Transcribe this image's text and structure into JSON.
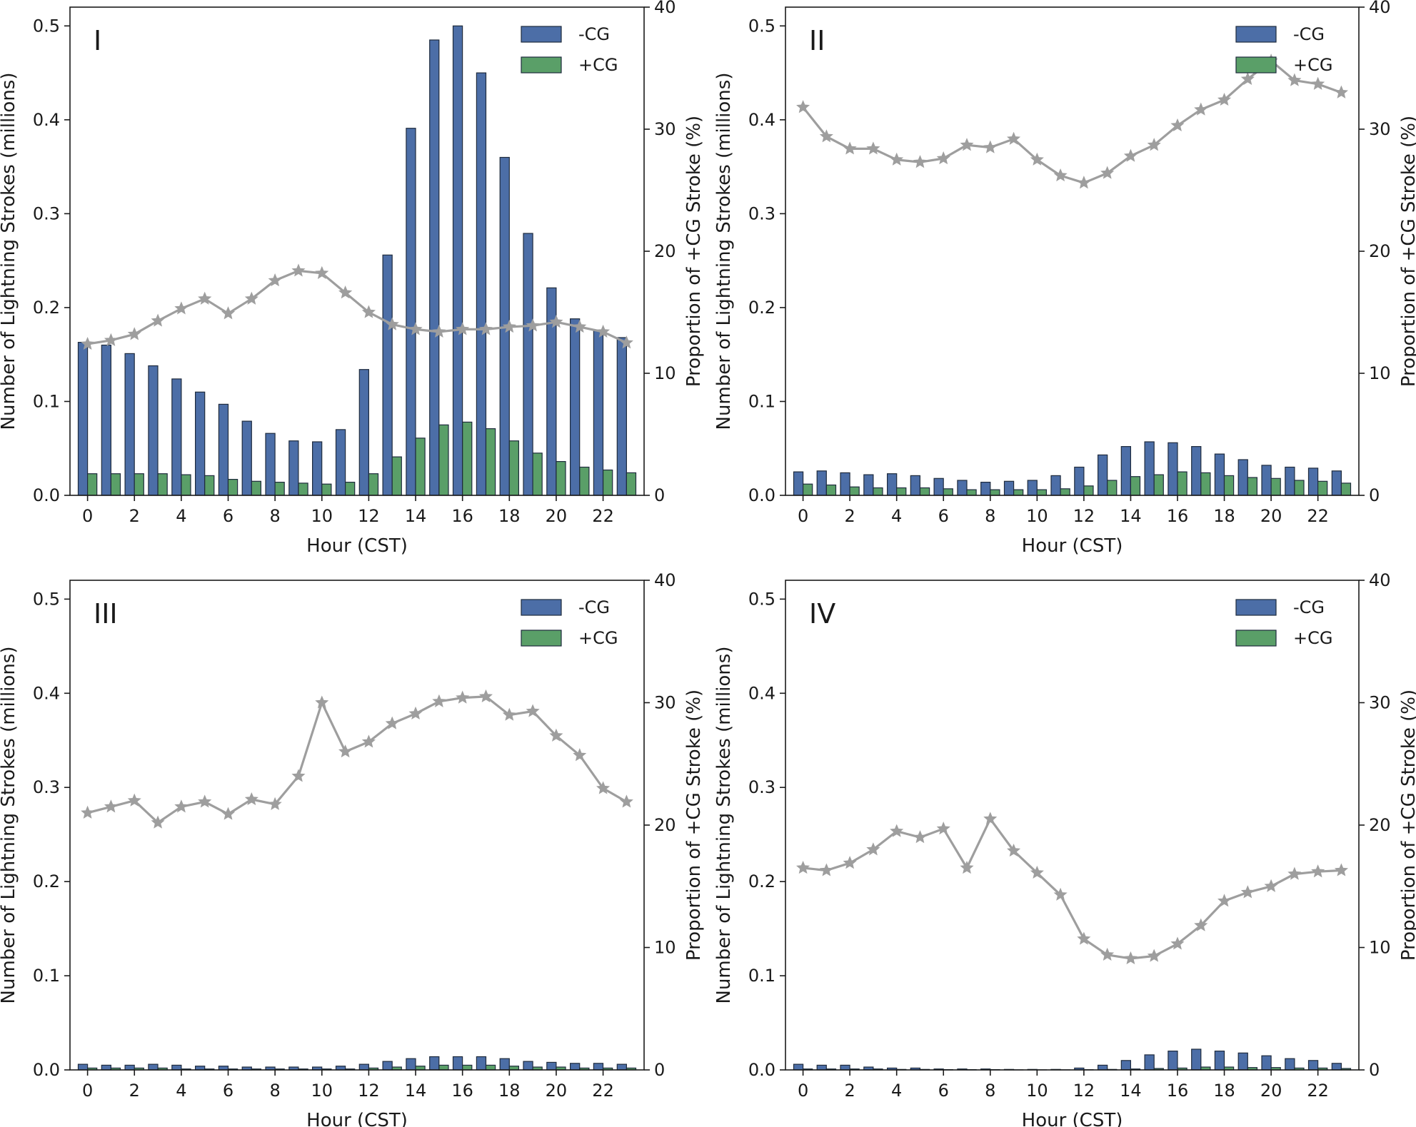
{
  "figure": {
    "legend": {
      "neg_label": "-CG",
      "pos_label": "+CG"
    },
    "colors": {
      "neg": "#4c6ea7",
      "pos": "#5a9f68",
      "line": "#9e9e9e",
      "axis": "#1a1a1a",
      "edge": "#1f2b3d"
    }
  },
  "chart_data": [
    {
      "type": "bar",
      "panel_label": "I",
      "xlabel": "Hour (CST)",
      "ylabel": "Number of Lightning Strokes (millions)",
      "ylabel_right": "Proportion of +CG Stroke (%)",
      "xticks": [
        "0",
        "2",
        "4",
        "6",
        "8",
        "10",
        "12",
        "14",
        "16",
        "18",
        "20",
        "22"
      ],
      "yticks": [
        "0.0",
        "0.1",
        "0.2",
        "0.3",
        "0.4",
        "0.5"
      ],
      "yticks_right": [
        "0",
        "10",
        "20",
        "30",
        "40"
      ],
      "ylim": [
        0,
        0.52
      ],
      "ylim_right": [
        0,
        40
      ],
      "legend": "top-right",
      "categories": [
        0,
        1,
        2,
        3,
        4,
        5,
        6,
        7,
        8,
        9,
        10,
        11,
        12,
        13,
        14,
        15,
        16,
        17,
        18,
        19,
        20,
        21,
        22,
        23
      ],
      "series": [
        {
          "name": "-CG",
          "values": [
            0.163,
            0.16,
            0.151,
            0.138,
            0.124,
            0.11,
            0.097,
            0.079,
            0.066,
            0.058,
            0.057,
            0.07,
            0.134,
            0.256,
            0.391,
            0.485,
            0.5,
            0.45,
            0.36,
            0.279,
            0.221,
            0.188,
            0.176,
            0.168
          ]
        },
        {
          "name": "+CG",
          "values": [
            0.023,
            0.023,
            0.023,
            0.023,
            0.022,
            0.021,
            0.017,
            0.015,
            0.014,
            0.013,
            0.012,
            0.014,
            0.023,
            0.041,
            0.061,
            0.075,
            0.078,
            0.071,
            0.058,
            0.045,
            0.036,
            0.03,
            0.027,
            0.024
          ]
        },
        {
          "axis": "right",
          "values": [
            12.4,
            12.7,
            13.2,
            14.3,
            15.3,
            16.1,
            14.9,
            16.1,
            17.6,
            18.4,
            18.2,
            16.6,
            15.0,
            14.0,
            13.6,
            13.4,
            13.6,
            13.6,
            13.8,
            13.9,
            14.2,
            13.8,
            13.4,
            12.5
          ]
        }
      ]
    },
    {
      "type": "bar",
      "panel_label": "II",
      "xlabel": "Hour (CST)",
      "ylabel": "Number of Lightning Strokes (millions)",
      "ylabel_right": "Proportion of +CG Stroke (%)",
      "xticks": [
        "0",
        "2",
        "4",
        "6",
        "8",
        "10",
        "12",
        "14",
        "16",
        "18",
        "20",
        "22"
      ],
      "yticks": [
        "0.0",
        "0.1",
        "0.2",
        "0.3",
        "0.4",
        "0.5"
      ],
      "yticks_right": [
        "0",
        "10",
        "20",
        "30",
        "40"
      ],
      "ylim": [
        0,
        0.52
      ],
      "ylim_right": [
        0,
        40
      ],
      "legend": "top-right",
      "categories": [
        0,
        1,
        2,
        3,
        4,
        5,
        6,
        7,
        8,
        9,
        10,
        11,
        12,
        13,
        14,
        15,
        16,
        17,
        18,
        19,
        20,
        21,
        22,
        23
      ],
      "series": [
        {
          "name": "-CG",
          "values": [
            0.025,
            0.026,
            0.024,
            0.022,
            0.023,
            0.021,
            0.018,
            0.016,
            0.014,
            0.015,
            0.016,
            0.021,
            0.03,
            0.043,
            0.052,
            0.057,
            0.056,
            0.052,
            0.044,
            0.038,
            0.032,
            0.03,
            0.029,
            0.026
          ]
        },
        {
          "name": "+CG",
          "values": [
            0.012,
            0.011,
            0.009,
            0.008,
            0.008,
            0.008,
            0.007,
            0.006,
            0.006,
            0.006,
            0.006,
            0.007,
            0.01,
            0.016,
            0.02,
            0.022,
            0.025,
            0.024,
            0.021,
            0.019,
            0.018,
            0.016,
            0.015,
            0.013
          ]
        },
        {
          "axis": "right",
          "values": [
            31.8,
            29.4,
            28.4,
            28.4,
            27.5,
            27.3,
            27.6,
            28.7,
            28.5,
            29.2,
            27.5,
            26.2,
            25.6,
            26.4,
            27.8,
            28.7,
            30.3,
            31.6,
            32.4,
            34.1,
            35.6,
            34.0,
            33.7,
            33.0
          ]
        }
      ]
    },
    {
      "type": "bar",
      "panel_label": "III",
      "xlabel": "Hour (CST)",
      "ylabel": "Number of Lightning Strokes (millions)",
      "ylabel_right": "Proportion of +CG Stroke (%)",
      "xticks": [
        "0",
        "2",
        "4",
        "6",
        "8",
        "10",
        "12",
        "14",
        "16",
        "18",
        "20",
        "22"
      ],
      "yticks": [
        "0.0",
        "0.1",
        "0.2",
        "0.3",
        "0.4",
        "0.5"
      ],
      "yticks_right": [
        "0",
        "10",
        "20",
        "30",
        "40"
      ],
      "ylim": [
        0,
        0.52
      ],
      "ylim_right": [
        0,
        40
      ],
      "legend": "top-right",
      "categories": [
        0,
        1,
        2,
        3,
        4,
        5,
        6,
        7,
        8,
        9,
        10,
        11,
        12,
        13,
        14,
        15,
        16,
        17,
        18,
        19,
        20,
        21,
        22,
        23
      ],
      "series": [
        {
          "name": "-CG",
          "values": [
            0.006,
            0.005,
            0.005,
            0.006,
            0.005,
            0.004,
            0.004,
            0.003,
            0.003,
            0.003,
            0.003,
            0.004,
            0.006,
            0.009,
            0.012,
            0.014,
            0.014,
            0.014,
            0.012,
            0.009,
            0.008,
            0.007,
            0.007,
            0.006
          ]
        },
        {
          "name": "+CG",
          "values": [
            0.002,
            0.002,
            0.002,
            0.002,
            0.001,
            0.001,
            0.001,
            0.001,
            0.001,
            0.001,
            0.001,
            0.001,
            0.002,
            0.003,
            0.004,
            0.005,
            0.005,
            0.005,
            0.004,
            0.003,
            0.003,
            0.002,
            0.002,
            0.002
          ]
        },
        {
          "axis": "right",
          "values": [
            21.0,
            21.5,
            22.0,
            20.2,
            21.5,
            21.9,
            20.9,
            22.1,
            21.7,
            24.0,
            30.0,
            26.0,
            26.8,
            28.3,
            29.1,
            30.1,
            30.4,
            30.5,
            29.0,
            29.3,
            27.3,
            25.7,
            23.0,
            21.9
          ]
        }
      ]
    },
    {
      "type": "bar",
      "panel_label": "IV",
      "xlabel": "Hour (CST)",
      "ylabel": "Number of Lightning Strokes (millions)",
      "ylabel_right": "Proportion of +CG Stroke (%)",
      "xticks": [
        "0",
        "2",
        "4",
        "6",
        "8",
        "10",
        "12",
        "14",
        "16",
        "18",
        "20",
        "22"
      ],
      "yticks": [
        "0.0",
        "0.1",
        "0.2",
        "0.3",
        "0.4",
        "0.5"
      ],
      "yticks_right": [
        "0",
        "10",
        "20",
        "30",
        "40"
      ],
      "ylim": [
        0,
        0.52
      ],
      "ylim_right": [
        0,
        40
      ],
      "legend": "top-right",
      "categories": [
        0,
        1,
        2,
        3,
        4,
        5,
        6,
        7,
        8,
        9,
        10,
        11,
        12,
        13,
        14,
        15,
        16,
        17,
        18,
        19,
        20,
        21,
        22,
        23
      ],
      "series": [
        {
          "name": "-CG",
          "values": [
            0.006,
            0.005,
            0.005,
            0.003,
            0.002,
            0.002,
            0.001,
            0.001,
            0.001,
            0.0005,
            0.0005,
            0.0005,
            0.002,
            0.005,
            0.01,
            0.016,
            0.02,
            0.022,
            0.02,
            0.018,
            0.015,
            0.012,
            0.01,
            0.007
          ]
        },
        {
          "name": "+CG",
          "values": [
            0.001,
            0.001,
            0.001,
            0.001,
            0.0005,
            0.0005,
            0.0003,
            0.0003,
            0.0003,
            0.0001,
            0.0001,
            0.0001,
            0.0002,
            0.0005,
            0.001,
            0.0015,
            0.002,
            0.003,
            0.003,
            0.0025,
            0.0025,
            0.002,
            0.002,
            0.0015
          ]
        },
        {
          "axis": "right",
          "values": [
            16.5,
            16.3,
            16.9,
            18.0,
            19.5,
            19.0,
            19.7,
            16.5,
            20.5,
            17.9,
            16.1,
            14.3,
            10.7,
            9.4,
            9.1,
            9.3,
            10.3,
            11.8,
            13.8,
            14.5,
            15.0,
            16.0,
            16.2,
            16.3
          ]
        }
      ]
    }
  ]
}
